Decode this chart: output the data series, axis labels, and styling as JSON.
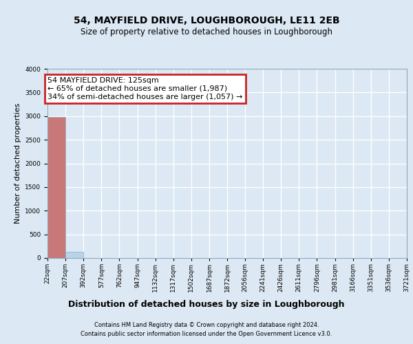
{
  "title": "54, MAYFIELD DRIVE, LOUGHBOROUGH, LE11 2EB",
  "subtitle": "Size of property relative to detached houses in Loughborough",
  "xlabel": "Distribution of detached houses by size in Loughborough",
  "ylabel": "Number of detached properties",
  "footer_line1": "Contains HM Land Registry data © Crown copyright and database right 2024.",
  "footer_line2": "Contains public sector information licensed under the Open Government Licence v3.0.",
  "annotation_line1": "54 MAYFIELD DRIVE: 125sqm",
  "annotation_line2": "← 65% of detached houses are smaller (1,987)",
  "annotation_line3": "34% of semi-detached houses are larger (1,057) →",
  "bins": [
    22,
    207,
    392,
    577,
    762,
    947,
    1132,
    1317,
    1502,
    1687,
    1872,
    2056,
    2241,
    2426,
    2611,
    2796,
    2981,
    3166,
    3351,
    3536,
    3721
  ],
  "bar_labels": [
    "22sqm",
    "207sqm",
    "392sqm",
    "577sqm",
    "762sqm",
    "947sqm",
    "1132sqm",
    "1317sqm",
    "1502sqm",
    "1687sqm",
    "1872sqm",
    "2056sqm",
    "2241sqm",
    "2426sqm",
    "2611sqm",
    "2796sqm",
    "2981sqm",
    "3166sqm",
    "3351sqm",
    "3536sqm",
    "3721sqm"
  ],
  "bar_heights": [
    2980,
    125,
    0,
    0,
    0,
    0,
    0,
    0,
    0,
    0,
    0,
    0,
    0,
    0,
    0,
    0,
    0,
    0,
    0,
    0
  ],
  "bar_color_default": "#b8d4e8",
  "bar_color_highlight": "#c87878",
  "highlight_bar_index": 0,
  "ylim": [
    0,
    4000
  ],
  "yticks": [
    0,
    500,
    1000,
    1500,
    2000,
    2500,
    3000,
    3500,
    4000
  ],
  "background_color": "#dce8f3",
  "plot_bg_color": "#dce8f3",
  "grid_color": "#ffffff",
  "annotation_box_facecolor": "#ffffff",
  "annotation_box_edgecolor": "#cc2222",
  "title_fontsize": 10,
  "subtitle_fontsize": 8.5,
  "tick_fontsize": 6.5,
  "ylabel_fontsize": 8,
  "xlabel_fontsize": 9,
  "annotation_fontsize": 8,
  "footer_fontsize": 6
}
